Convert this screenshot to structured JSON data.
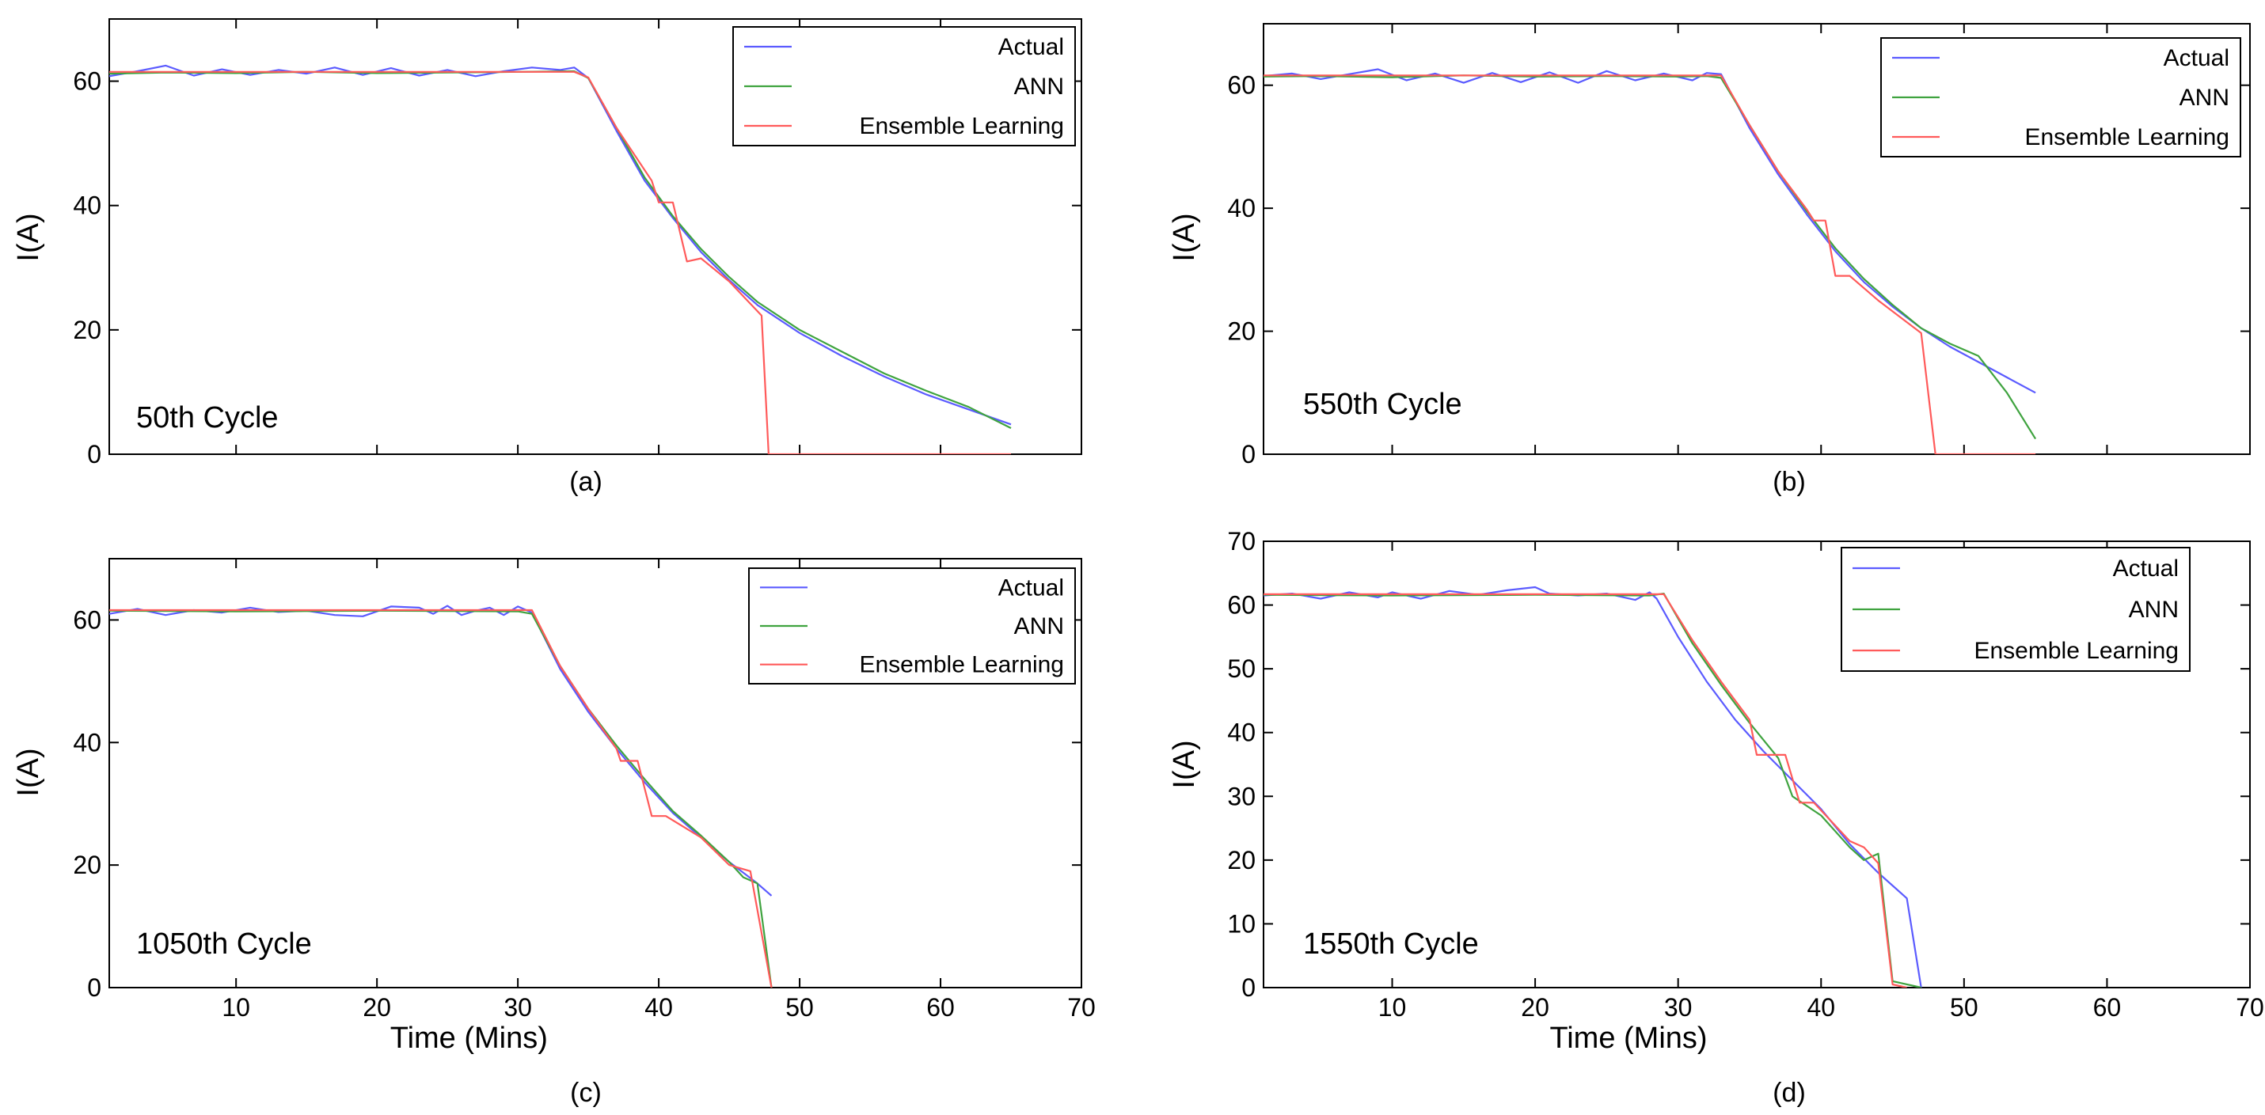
{
  "figure": {
    "background": "#ffffff"
  },
  "series_colors": {
    "Actual": "#5b5bff",
    "ANN": "#3fa33f",
    "Ensemble Learning": "#ff5a5a"
  },
  "chart_data": [
    {
      "type": "line",
      "panel_label": "(a)",
      "annotation": "50th Cycle",
      "xlabel": "",
      "ylabel": "I(A)",
      "xlim": [
        1,
        70
      ],
      "ylim": [
        0,
        70
      ],
      "yticks": [
        0,
        20,
        40,
        60
      ],
      "xticks": [
        10,
        20,
        30,
        40,
        50,
        60,
        70
      ],
      "show_xtick_labels": false,
      "legend": [
        "Actual",
        "ANN",
        "Ensemble Learning"
      ],
      "legend_position": "top-right",
      "series": [
        {
          "name": "Actual",
          "points": [
            [
              1,
              60.8
            ],
            [
              3,
              61.6
            ],
            [
              5,
              62.5
            ],
            [
              7,
              60.9
            ],
            [
              9,
              61.9
            ],
            [
              11,
              61.0
            ],
            [
              13,
              61.8
            ],
            [
              15,
              61.2
            ],
            [
              17,
              62.2
            ],
            [
              19,
              61.0
            ],
            [
              21,
              62.1
            ],
            [
              23,
              60.9
            ],
            [
              25,
              61.8
            ],
            [
              27,
              60.8
            ],
            [
              29,
              61.6
            ],
            [
              31,
              62.2
            ],
            [
              33,
              61.8
            ],
            [
              34,
              62.2
            ],
            [
              35,
              60.5
            ],
            [
              37,
              52
            ],
            [
              39,
              44
            ],
            [
              41,
              38
            ],
            [
              43,
              32.5
            ],
            [
              45,
              28
            ],
            [
              47,
              24
            ],
            [
              50,
              19.5
            ],
            [
              53,
              15.8
            ],
            [
              56,
              12.5
            ],
            [
              59,
              9.6
            ],
            [
              62,
              7.2
            ],
            [
              65,
              4.8
            ]
          ]
        },
        {
          "name": "ANN",
          "points": [
            [
              1,
              61.2
            ],
            [
              5,
              61.4
            ],
            [
              10,
              61.3
            ],
            [
              15,
              61.5
            ],
            [
              20,
              61.3
            ],
            [
              25,
              61.4
            ],
            [
              30,
              61.5
            ],
            [
              34,
              61.6
            ],
            [
              35,
              60.5
            ],
            [
              37,
              52.5
            ],
            [
              39,
              44.5
            ],
            [
              41,
              38.3
            ],
            [
              43,
              33
            ],
            [
              45,
              28.5
            ],
            [
              47,
              24.5
            ],
            [
              50,
              20
            ],
            [
              53,
              16.5
            ],
            [
              56,
              13
            ],
            [
              59,
              10.2
            ],
            [
              62,
              7.6
            ],
            [
              65,
              4.2
            ]
          ]
        },
        {
          "name": "Ensemble Learning",
          "points": [
            [
              1,
              61.5
            ],
            [
              34,
              61.5
            ],
            [
              35,
              60.6
            ],
            [
              37,
              52.5
            ],
            [
              39.5,
              44
            ],
            [
              40,
              40.5
            ],
            [
              41,
              40.5
            ],
            [
              42,
              31
            ],
            [
              43,
              31.5
            ],
            [
              45,
              27.8
            ],
            [
              47.3,
              22.3
            ],
            [
              47.8,
              0
            ],
            [
              65,
              0
            ]
          ]
        }
      ]
    },
    {
      "type": "line",
      "panel_label": "(b)",
      "annotation": "550th Cycle",
      "xlabel": "",
      "ylabel": "I(A)",
      "xlim": [
        1,
        70
      ],
      "ylim": [
        0,
        70
      ],
      "yticks": [
        0,
        20,
        40,
        60
      ],
      "xticks": [
        10,
        20,
        30,
        40,
        50,
        60,
        70
      ],
      "show_xtick_labels": false,
      "legend": [
        "Actual",
        "ANN",
        "Ensemble Learning"
      ],
      "legend_position": "top-right",
      "series": [
        {
          "name": "Actual",
          "points": [
            [
              1,
              61.5
            ],
            [
              3,
              61.9
            ],
            [
              5,
              61.0
            ],
            [
              7,
              61.8
            ],
            [
              9,
              62.6
            ],
            [
              11,
              60.8
            ],
            [
              13,
              61.9
            ],
            [
              15,
              60.4
            ],
            [
              17,
              62.0
            ],
            [
              19,
              60.5
            ],
            [
              21,
              62.1
            ],
            [
              23,
              60.4
            ],
            [
              25,
              62.3
            ],
            [
              27,
              60.8
            ],
            [
              29,
              61.9
            ],
            [
              31,
              60.8
            ],
            [
              32,
              62.0
            ],
            [
              33,
              61.8
            ],
            [
              35,
              53
            ],
            [
              37,
              45.5
            ],
            [
              39,
              39
            ],
            [
              41,
              33
            ],
            [
              43,
              28
            ],
            [
              45,
              24
            ],
            [
              47,
              20.5
            ],
            [
              49,
              17.5
            ],
            [
              51,
              15
            ],
            [
              53,
              12.5
            ],
            [
              55,
              10
            ]
          ]
        },
        {
          "name": "ANN",
          "points": [
            [
              1,
              61.4
            ],
            [
              5,
              61.5
            ],
            [
              10,
              61.3
            ],
            [
              15,
              61.6
            ],
            [
              20,
              61.4
            ],
            [
              25,
              61.5
            ],
            [
              30,
              61.4
            ],
            [
              32,
              61.5
            ],
            [
              33,
              61.2
            ],
            [
              35,
              53.5
            ],
            [
              37,
              46
            ],
            [
              39,
              39.5
            ],
            [
              41,
              33.5
            ],
            [
              43,
              28.5
            ],
            [
              45,
              24.3
            ],
            [
              47,
              20.5
            ],
            [
              49,
              18
            ],
            [
              51,
              16
            ],
            [
              53,
              10
            ],
            [
              55,
              2.5
            ]
          ]
        },
        {
          "name": "Ensemble Learning",
          "points": [
            [
              1,
              61.6
            ],
            [
              33,
              61.6
            ],
            [
              35,
              53.5
            ],
            [
              37,
              46
            ],
            [
              39,
              39.8
            ],
            [
              39.5,
              38
            ],
            [
              40.3,
              38
            ],
            [
              41,
              29
            ],
            [
              42,
              29
            ],
            [
              44,
              25
            ],
            [
              47,
              19.7
            ],
            [
              48,
              0
            ],
            [
              55,
              0
            ]
          ]
        }
      ]
    },
    {
      "type": "line",
      "panel_label": "(c)",
      "annotation": "1050th Cycle",
      "xlabel": "Time (Mins)",
      "ylabel": "I(A)",
      "xlim": [
        1,
        70
      ],
      "ylim": [
        0,
        70
      ],
      "yticks": [
        0,
        20,
        40,
        60
      ],
      "xticks": [
        10,
        20,
        30,
        40,
        50,
        60,
        70
      ],
      "show_xtick_labels": true,
      "legend": [
        "Actual",
        "ANN",
        "Ensemble Learning"
      ],
      "legend_position": "top-right",
      "series": [
        {
          "name": "Actual",
          "points": [
            [
              1,
              61.0
            ],
            [
              3,
              61.8
            ],
            [
              5,
              60.8
            ],
            [
              7,
              61.6
            ],
            [
              9,
              61.2
            ],
            [
              11,
              62.0
            ],
            [
              13,
              61.3
            ],
            [
              15,
              61.5
            ],
            [
              17,
              60.8
            ],
            [
              19,
              60.6
            ],
            [
              21,
              62.2
            ],
            [
              23,
              62.0
            ],
            [
              24,
              61.0
            ],
            [
              25,
              62.3
            ],
            [
              26,
              60.8
            ],
            [
              27,
              61.5
            ],
            [
              28,
              62.0
            ],
            [
              29,
              60.8
            ],
            [
              30,
              62.2
            ],
            [
              31,
              61.2
            ],
            [
              33,
              52
            ],
            [
              35,
              45
            ],
            [
              37,
              39
            ],
            [
              39,
              33.5
            ],
            [
              41,
              28.5
            ],
            [
              43,
              24.5
            ],
            [
              45,
              20.5
            ],
            [
              47,
              17
            ],
            [
              48,
              15
            ]
          ]
        },
        {
          "name": "ANN",
          "points": [
            [
              1,
              61.5
            ],
            [
              10,
              61.4
            ],
            [
              20,
              61.5
            ],
            [
              30,
              61.4
            ],
            [
              31,
              61.0
            ],
            [
              33,
              52.5
            ],
            [
              35,
              45.5
            ],
            [
              37,
              39.5
            ],
            [
              39,
              34
            ],
            [
              41,
              28.8
            ],
            [
              43,
              24.8
            ],
            [
              45,
              20.5
            ],
            [
              46,
              18
            ],
            [
              47,
              17
            ],
            [
              48,
              0
            ]
          ]
        },
        {
          "name": "Ensemble Learning",
          "points": [
            [
              1,
              61.6
            ],
            [
              31,
              61.6
            ],
            [
              33,
              52.5
            ],
            [
              35,
              45.5
            ],
            [
              37,
              39
            ],
            [
              37.3,
              37
            ],
            [
              38.5,
              37
            ],
            [
              39.5,
              28
            ],
            [
              40.5,
              28
            ],
            [
              43,
              24.5
            ],
            [
              45,
              20
            ],
            [
              46.5,
              19
            ],
            [
              48,
              0
            ]
          ]
        }
      ]
    },
    {
      "type": "line",
      "panel_label": "(d)",
      "annotation": "1550th Cycle",
      "xlabel": "Time (Mins)",
      "ylabel": "I(A)",
      "xlim": [
        1,
        70
      ],
      "ylim": [
        0,
        70
      ],
      "yticks": [
        0,
        10,
        20,
        30,
        40,
        50,
        60,
        70
      ],
      "xticks": [
        10,
        20,
        30,
        40,
        50,
        60,
        70
      ],
      "show_xtick_labels": true,
      "legend": [
        "Actual",
        "ANN",
        "Ensemble Learning"
      ],
      "legend_position": "top-right",
      "series": [
        {
          "name": "Actual",
          "points": [
            [
              1,
              61.5
            ],
            [
              3,
              61.8
            ],
            [
              5,
              61.0
            ],
            [
              7,
              62.0
            ],
            [
              9,
              61.2
            ],
            [
              10,
              62.0
            ],
            [
              12,
              61.0
            ],
            [
              14,
              62.2
            ],
            [
              16,
              61.6
            ],
            [
              18,
              62.3
            ],
            [
              20,
              62.8
            ],
            [
              21,
              61.8
            ],
            [
              23,
              61.5
            ],
            [
              25,
              61.8
            ],
            [
              27,
              60.8
            ],
            [
              28,
              62.0
            ],
            [
              28.5,
              61.0
            ],
            [
              30,
              55
            ],
            [
              32,
              48
            ],
            [
              34,
              42
            ],
            [
              36,
              37
            ],
            [
              38,
              32.5
            ],
            [
              40,
              28
            ],
            [
              42,
              22.5
            ],
            [
              44,
              18
            ],
            [
              46,
              14
            ],
            [
              47,
              0
            ]
          ]
        },
        {
          "name": "ANN",
          "points": [
            [
              1,
              61.6
            ],
            [
              10,
              61.5
            ],
            [
              20,
              61.6
            ],
            [
              28,
              61.5
            ],
            [
              29,
              61.8
            ],
            [
              31,
              54
            ],
            [
              33,
              47.5
            ],
            [
              35,
              41.5
            ],
            [
              37,
              36
            ],
            [
              38,
              30
            ],
            [
              40,
              27
            ],
            [
              42,
              22
            ],
            [
              43,
              20
            ],
            [
              44,
              21
            ],
            [
              45,
              1
            ],
            [
              47,
              0
            ]
          ]
        },
        {
          "name": "Ensemble Learning",
          "points": [
            [
              1,
              61.7
            ],
            [
              28,
              61.7
            ],
            [
              29,
              61.7
            ],
            [
              31,
              54.5
            ],
            [
              33,
              48
            ],
            [
              35,
              42
            ],
            [
              35.5,
              36.5
            ],
            [
              37.5,
              36.5
            ],
            [
              38.5,
              29
            ],
            [
              39.5,
              29
            ],
            [
              42,
              23
            ],
            [
              43,
              22
            ],
            [
              44,
              19.5
            ],
            [
              45,
              0.5
            ],
            [
              46,
              0
            ]
          ]
        }
      ]
    }
  ]
}
